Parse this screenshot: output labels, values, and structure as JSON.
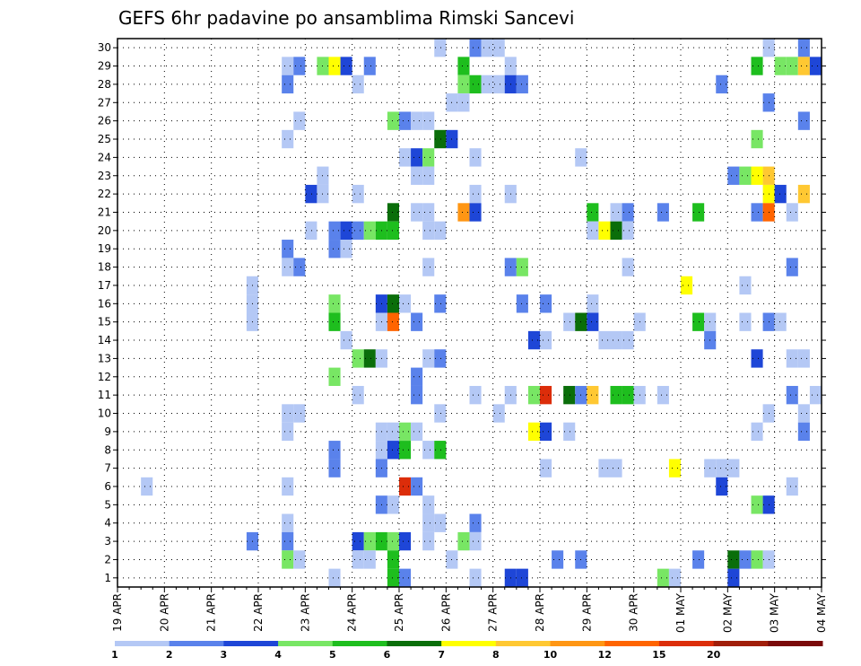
{
  "chart_data": {
    "type": "heatmap",
    "title": "GEFS 6hr padavine po ansamblima Rimski Sancevi",
    "xlabel": "",
    "ylabel": "",
    "y_ticks": [
      "1",
      "2",
      "3",
      "4",
      "5",
      "6",
      "7",
      "8",
      "9",
      "10",
      "11",
      "12",
      "13",
      "14",
      "15",
      "16",
      "17",
      "18",
      "19",
      "20",
      "21",
      "22",
      "23",
      "24",
      "25",
      "26",
      "27",
      "28",
      "29",
      "30"
    ],
    "x_ticks": [
      "19 APR",
      "20 APR",
      "21 APR",
      "22 APR",
      "23 APR",
      "24 APR",
      "25 APR",
      "26 APR",
      "27 APR",
      "28 APR",
      "29 APR",
      "30 APR",
      "01 MAY",
      "02 MAY",
      "03 MAY",
      "04 MAY"
    ],
    "x_step_hours": 6,
    "n_steps": 60,
    "n_members": 30,
    "grid": true,
    "colorbar": {
      "labels": [
        "1",
        "2",
        "3",
        "4",
        "5",
        "6",
        "7",
        "8",
        "10",
        "12",
        "15",
        "20"
      ],
      "colors": [
        "#b4c8f5",
        "#5a82eb",
        "#1e46d7",
        "#78e664",
        "#1ebe1e",
        "#0a6e0a",
        "#ffff00",
        "#ffc832",
        "#ff9614",
        "#ff6400",
        "#dc2d0a",
        "#a01e0a",
        "#7a0a0a"
      ]
    },
    "cells": [
      [
        30,
        28,
        1
      ],
      [
        30,
        31,
        2
      ],
      [
        30,
        32,
        1
      ],
      [
        30,
        33,
        1
      ],
      [
        30,
        56,
        1
      ],
      [
        30,
        59,
        2
      ],
      [
        29,
        15,
        1
      ],
      [
        29,
        16,
        2
      ],
      [
        29,
        18,
        4
      ],
      [
        29,
        19,
        7
      ],
      [
        29,
        20,
        3
      ],
      [
        29,
        22,
        2
      ],
      [
        29,
        30,
        5
      ],
      [
        29,
        34,
        1
      ],
      [
        29,
        55,
        5
      ],
      [
        29,
        57,
        4
      ],
      [
        29,
        58,
        4
      ],
      [
        29,
        59,
        8
      ],
      [
        29,
        60,
        3
      ],
      [
        28,
        15,
        2
      ],
      [
        28,
        21,
        1
      ],
      [
        28,
        30,
        4
      ],
      [
        28,
        31,
        5
      ],
      [
        28,
        32,
        1
      ],
      [
        28,
        33,
        1
      ],
      [
        28,
        34,
        3
      ],
      [
        28,
        35,
        2
      ],
      [
        28,
        52,
        2
      ],
      [
        27,
        29,
        1
      ],
      [
        27,
        30,
        1
      ],
      [
        27,
        56,
        2
      ],
      [
        26,
        16,
        1
      ],
      [
        26,
        24,
        4
      ],
      [
        26,
        25,
        2
      ],
      [
        26,
        26,
        1
      ],
      [
        26,
        27,
        1
      ],
      [
        26,
        59,
        2
      ],
      [
        25,
        15,
        1
      ],
      [
        25,
        28,
        6
      ],
      [
        25,
        29,
        3
      ],
      [
        25,
        55,
        4
      ],
      [
        24,
        25,
        1
      ],
      [
        24,
        26,
        3
      ],
      [
        24,
        27,
        4
      ],
      [
        24,
        31,
        1
      ],
      [
        24,
        40,
        1
      ],
      [
        23,
        18,
        1
      ],
      [
        23,
        26,
        1
      ],
      [
        23,
        27,
        1
      ],
      [
        23,
        53,
        2
      ],
      [
        23,
        54,
        4
      ],
      [
        23,
        55,
        7
      ],
      [
        23,
        56,
        8
      ],
      [
        22,
        17,
        3
      ],
      [
        22,
        18,
        1
      ],
      [
        22,
        21,
        1
      ],
      [
        22,
        31,
        1
      ],
      [
        22,
        34,
        1
      ],
      [
        22,
        56,
        7
      ],
      [
        22,
        57,
        3
      ],
      [
        22,
        59,
        8
      ],
      [
        21,
        24,
        6
      ],
      [
        21,
        26,
        1
      ],
      [
        21,
        27,
        1
      ],
      [
        21,
        30,
        9
      ],
      [
        21,
        31,
        3
      ],
      [
        21,
        41,
        5
      ],
      [
        21,
        43,
        1
      ],
      [
        21,
        44,
        2
      ],
      [
        21,
        47,
        2
      ],
      [
        21,
        50,
        5
      ],
      [
        21,
        55,
        2
      ],
      [
        21,
        56,
        10
      ],
      [
        21,
        58,
        1
      ],
      [
        20,
        17,
        1
      ],
      [
        20,
        19,
        2
      ],
      [
        20,
        20,
        3
      ],
      [
        20,
        21,
        2
      ],
      [
        20,
        22,
        4
      ],
      [
        20,
        23,
        5
      ],
      [
        20,
        24,
        5
      ],
      [
        20,
        27,
        1
      ],
      [
        20,
        28,
        1
      ],
      [
        20,
        41,
        1
      ],
      [
        20,
        42,
        7
      ],
      [
        20,
        43,
        6
      ],
      [
        20,
        44,
        1
      ],
      [
        19,
        15,
        2
      ],
      [
        19,
        19,
        2
      ],
      [
        19,
        20,
        1
      ],
      [
        18,
        15,
        1
      ],
      [
        18,
        16,
        2
      ],
      [
        18,
        27,
        1
      ],
      [
        18,
        34,
        2
      ],
      [
        18,
        35,
        4
      ],
      [
        18,
        44,
        1
      ],
      [
        18,
        58,
        2
      ],
      [
        17,
        12,
        1
      ],
      [
        17,
        49,
        7
      ],
      [
        17,
        54,
        1
      ],
      [
        16,
        12,
        1
      ],
      [
        16,
        19,
        4
      ],
      [
        16,
        23,
        3
      ],
      [
        16,
        24,
        6
      ],
      [
        16,
        25,
        1
      ],
      [
        16,
        28,
        2
      ],
      [
        16,
        35,
        2
      ],
      [
        16,
        37,
        2
      ],
      [
        16,
        41,
        1
      ],
      [
        15,
        12,
        1
      ],
      [
        15,
        19,
        5
      ],
      [
        15,
        23,
        1
      ],
      [
        15,
        24,
        10
      ],
      [
        15,
        26,
        2
      ],
      [
        15,
        39,
        1
      ],
      [
        15,
        40,
        6
      ],
      [
        15,
        41,
        3
      ],
      [
        15,
        45,
        1
      ],
      [
        15,
        50,
        5
      ],
      [
        15,
        51,
        1
      ],
      [
        15,
        54,
        1
      ],
      [
        15,
        56,
        2
      ],
      [
        15,
        57,
        1
      ],
      [
        14,
        20,
        1
      ],
      [
        14,
        36,
        3
      ],
      [
        14,
        37,
        1
      ],
      [
        14,
        42,
        1
      ],
      [
        14,
        43,
        1
      ],
      [
        14,
        44,
        1
      ],
      [
        14,
        51,
        2
      ],
      [
        13,
        21,
        4
      ],
      [
        13,
        22,
        6
      ],
      [
        13,
        23,
        1
      ],
      [
        13,
        27,
        1
      ],
      [
        13,
        28,
        2
      ],
      [
        13,
        55,
        3
      ],
      [
        13,
        58,
        1
      ],
      [
        13,
        59,
        1
      ],
      [
        12,
        19,
        4
      ],
      [
        12,
        26,
        2
      ],
      [
        11,
        21,
        1
      ],
      [
        11,
        26,
        2
      ],
      [
        11,
        31,
        1
      ],
      [
        11,
        34,
        1
      ],
      [
        11,
        36,
        4
      ],
      [
        11,
        37,
        11
      ],
      [
        11,
        39,
        6
      ],
      [
        11,
        40,
        2
      ],
      [
        11,
        41,
        8
      ],
      [
        11,
        43,
        5
      ],
      [
        11,
        44,
        5
      ],
      [
        11,
        45,
        1
      ],
      [
        11,
        47,
        1
      ],
      [
        11,
        58,
        2
      ],
      [
        11,
        60,
        1
      ],
      [
        10,
        15,
        1
      ],
      [
        10,
        16,
        1
      ],
      [
        10,
        28,
        1
      ],
      [
        10,
        33,
        1
      ],
      [
        10,
        56,
        1
      ],
      [
        10,
        59,
        1
      ],
      [
        9,
        15,
        1
      ],
      [
        9,
        23,
        1
      ],
      [
        9,
        24,
        1
      ],
      [
        9,
        25,
        4
      ],
      [
        9,
        26,
        1
      ],
      [
        9,
        36,
        7
      ],
      [
        9,
        37,
        3
      ],
      [
        9,
        39,
        1
      ],
      [
        9,
        55,
        1
      ],
      [
        9,
        59,
        2
      ],
      [
        8,
        19,
        2
      ],
      [
        8,
        23,
        1
      ],
      [
        8,
        24,
        3
      ],
      [
        8,
        25,
        5
      ],
      [
        8,
        27,
        1
      ],
      [
        8,
        28,
        5
      ],
      [
        7,
        19,
        2
      ],
      [
        7,
        23,
        2
      ],
      [
        7,
        37,
        1
      ],
      [
        7,
        42,
        1
      ],
      [
        7,
        43,
        1
      ],
      [
        7,
        48,
        7
      ],
      [
        7,
        51,
        1
      ],
      [
        7,
        52,
        1
      ],
      [
        7,
        53,
        1
      ],
      [
        6,
        3,
        1
      ],
      [
        6,
        15,
        1
      ],
      [
        6,
        25,
        11
      ],
      [
        6,
        26,
        2
      ],
      [
        6,
        52,
        3
      ],
      [
        6,
        58,
        1
      ],
      [
        5,
        23,
        2
      ],
      [
        5,
        24,
        1
      ],
      [
        5,
        27,
        1
      ],
      [
        5,
        55,
        4
      ],
      [
        5,
        56,
        3
      ],
      [
        4,
        15,
        1
      ],
      [
        4,
        27,
        1
      ],
      [
        4,
        28,
        1
      ],
      [
        4,
        31,
        2
      ],
      [
        3,
        12,
        2
      ],
      [
        3,
        15,
        2
      ],
      [
        3,
        21,
        3
      ],
      [
        3,
        22,
        4
      ],
      [
        3,
        23,
        5
      ],
      [
        3,
        24,
        4
      ],
      [
        3,
        25,
        3
      ],
      [
        3,
        27,
        1
      ],
      [
        3,
        30,
        4
      ],
      [
        3,
        31,
        1
      ],
      [
        2,
        15,
        4
      ],
      [
        2,
        16,
        1
      ],
      [
        2,
        21,
        1
      ],
      [
        2,
        22,
        1
      ],
      [
        2,
        24,
        5
      ],
      [
        2,
        29,
        1
      ],
      [
        2,
        38,
        2
      ],
      [
        2,
        40,
        2
      ],
      [
        2,
        50,
        2
      ],
      [
        2,
        53,
        6
      ],
      [
        2,
        54,
        2
      ],
      [
        2,
        55,
        4
      ],
      [
        2,
        56,
        1
      ],
      [
        1,
        19,
        1
      ],
      [
        1,
        24,
        5
      ],
      [
        1,
        25,
        2
      ],
      [
        1,
        31,
        1
      ],
      [
        1,
        34,
        3
      ],
      [
        1,
        35,
        3
      ],
      [
        1,
        47,
        4
      ],
      [
        1,
        48,
        1
      ],
      [
        1,
        53,
        3
      ]
    ]
  }
}
